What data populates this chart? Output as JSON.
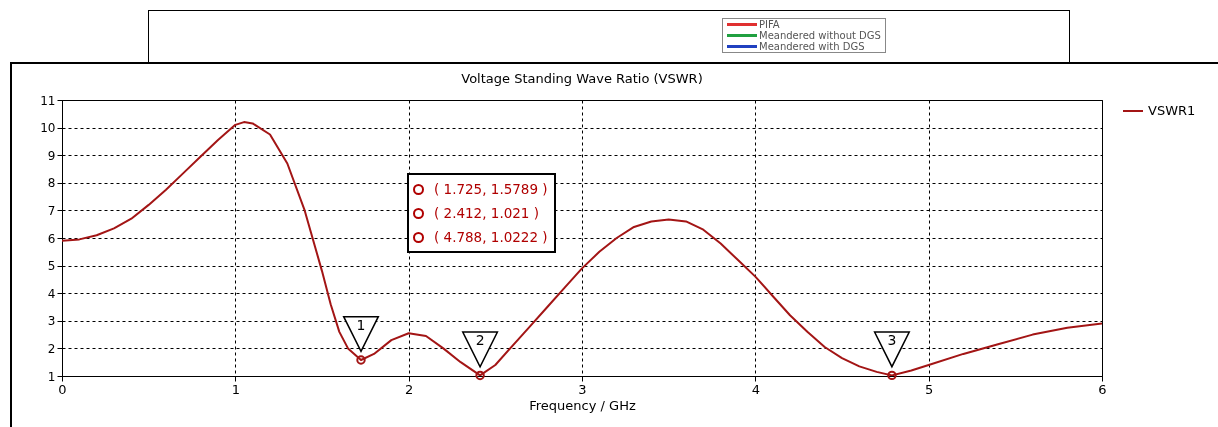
{
  "chart_data": {
    "type": "line",
    "title": "Voltage Standing Wave Ratio (VSWR)",
    "xlabel": "Frequency / GHz",
    "xlim": [
      0,
      6
    ],
    "ylim": [
      1,
      11
    ],
    "xticks": [
      0,
      1,
      2,
      3,
      4,
      5,
      6
    ],
    "yticks": [
      1,
      2,
      3,
      4,
      5,
      6,
      7,
      8,
      9,
      10,
      11
    ],
    "grid": true,
    "legend": "top right",
    "series": [
      {
        "name": "VSWR1",
        "color": "#a31515",
        "x": [
          0,
          0.1,
          0.2,
          0.3,
          0.4,
          0.5,
          0.6,
          0.7,
          0.8,
          0.9,
          1.0,
          1.05,
          1.1,
          1.2,
          1.3,
          1.4,
          1.5,
          1.55,
          1.6,
          1.65,
          1.725,
          1.8,
          1.9,
          2.0,
          2.1,
          2.2,
          2.3,
          2.412,
          2.5,
          2.6,
          2.7,
          2.8,
          2.9,
          3.0,
          3.1,
          3.2,
          3.3,
          3.4,
          3.5,
          3.6,
          3.7,
          3.8,
          3.9,
          4.0,
          4.1,
          4.2,
          4.3,
          4.4,
          4.5,
          4.6,
          4.7,
          4.788,
          4.9,
          5.0,
          5.2,
          5.4,
          5.6,
          5.8,
          6.0
        ],
        "values": [
          5.9,
          5.95,
          6.1,
          6.35,
          6.7,
          7.2,
          7.75,
          8.35,
          8.95,
          9.55,
          10.1,
          10.2,
          10.15,
          9.75,
          8.7,
          7.0,
          4.8,
          3.6,
          2.6,
          2.0,
          1.5789,
          1.8,
          2.3,
          2.55,
          2.45,
          2.0,
          1.5,
          1.021,
          1.4,
          2.1,
          2.8,
          3.5,
          4.2,
          4.9,
          5.5,
          6.0,
          6.4,
          6.6,
          6.67,
          6.6,
          6.3,
          5.8,
          5.2,
          4.6,
          3.9,
          3.2,
          2.6,
          2.05,
          1.65,
          1.35,
          1.15,
          1.0222,
          1.2,
          1.4,
          1.8,
          2.15,
          2.5,
          2.75,
          2.9
        ]
      },
      {
        "type": "scatter",
        "color": "#a31515",
        "marker": "circle",
        "x": [
          1.725,
          2.412,
          4.788
        ],
        "values": [
          1.5789,
          1.021,
          1.0222
        ]
      }
    ],
    "annotations": [
      {
        "text": "1",
        "x": 1.725,
        "y": 1.5789
      },
      {
        "text": "2",
        "x": 2.412,
        "y": 1.021
      },
      {
        "text": "3",
        "x": 4.788,
        "y": 1.0222
      },
      "( 1.725, 1.5789 )",
      "( 2.412, 1.021 )",
      "( 4.788, 1.0222 )",
      "PIFA",
      "Meandered without DGS",
      "Meandered with DGS"
    ]
  }
}
